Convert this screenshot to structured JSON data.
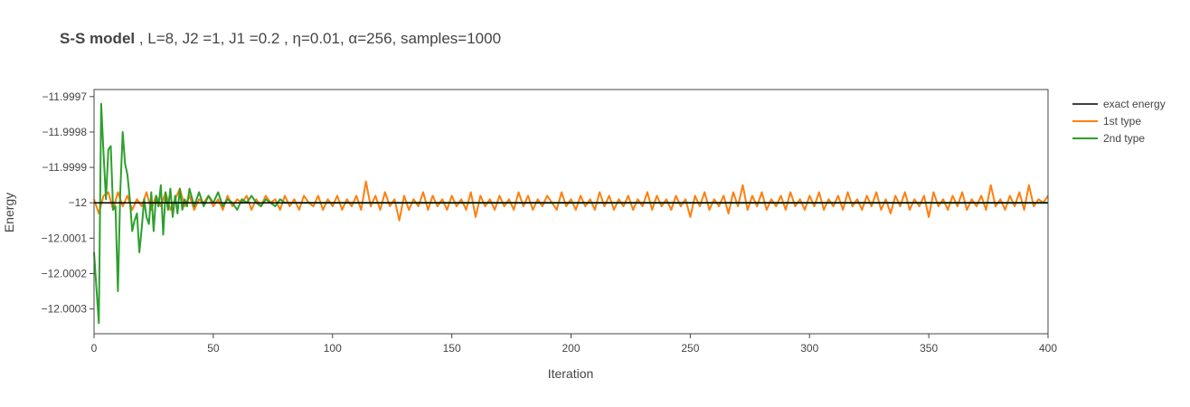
{
  "title": {
    "bold": "S-S model",
    "rest": " , L=8, J2 =1, J1 =0.2 , η=0.01, α=256, samples=1000"
  },
  "chart_data": {
    "type": "line",
    "xlabel": "Iteration",
    "ylabel": "Energy",
    "xlim": [
      0,
      400
    ],
    "ylim": [
      -12.00037,
      -11.99968
    ],
    "xticks": [
      0,
      50,
      100,
      150,
      200,
      250,
      300,
      350,
      400
    ],
    "yticks": [
      -11.9997,
      -11.9998,
      -11.9999,
      -12,
      -12.0001,
      -12.0002,
      -12.0003
    ],
    "ytick_labels": [
      "−11.9997",
      "−11.9998",
      "−11.9999",
      "−12",
      "−12.0001",
      "−12.0002",
      "−12.0003"
    ],
    "grid": false,
    "legend_position": "top-right (outside)",
    "series": [
      {
        "name": "exact energy",
        "color": "#000000",
        "x": [
          0,
          400
        ],
        "y": [
          -12.0,
          -12.0
        ]
      },
      {
        "name": "1st type",
        "color": "#ff7f0e",
        "x": [
          0,
          2,
          4,
          6,
          8,
          10,
          12,
          14,
          16,
          18,
          20,
          22,
          24,
          26,
          28,
          30,
          32,
          34,
          36,
          38,
          40,
          42,
          44,
          46,
          48,
          50,
          52,
          54,
          56,
          58,
          60,
          62,
          64,
          66,
          68,
          70,
          72,
          74,
          76,
          78,
          80,
          82,
          84,
          86,
          88,
          90,
          92,
          94,
          96,
          98,
          100,
          102,
          104,
          106,
          108,
          110,
          112,
          114,
          116,
          118,
          120,
          122,
          124,
          126,
          128,
          130,
          132,
          134,
          136,
          138,
          140,
          142,
          144,
          146,
          148,
          150,
          152,
          154,
          156,
          158,
          160,
          162,
          164,
          166,
          168,
          170,
          172,
          174,
          176,
          178,
          180,
          182,
          184,
          186,
          188,
          190,
          192,
          194,
          196,
          198,
          200,
          202,
          204,
          206,
          208,
          210,
          212,
          214,
          216,
          218,
          220,
          222,
          224,
          226,
          228,
          230,
          232,
          234,
          236,
          238,
          240,
          242,
          244,
          246,
          248,
          250,
          252,
          254,
          256,
          258,
          260,
          262,
          264,
          266,
          268,
          270,
          272,
          274,
          276,
          278,
          280,
          282,
          284,
          286,
          288,
          290,
          292,
          294,
          296,
          298,
          300,
          302,
          304,
          306,
          308,
          310,
          312,
          314,
          316,
          318,
          320,
          322,
          324,
          326,
          328,
          330,
          332,
          334,
          336,
          338,
          340,
          342,
          344,
          346,
          348,
          350,
          352,
          354,
          356,
          358,
          360,
          362,
          364,
          366,
          368,
          370,
          372,
          374,
          376,
          378,
          380,
          382,
          384,
          386,
          388,
          390,
          392,
          394,
          396,
          398,
          400
        ],
        "y": [
          -11.99999,
          -12.00003,
          -11.99998,
          -11.99997,
          -12.00002,
          -11.99997,
          -12.00001,
          -11.99998,
          -12.00002,
          -11.99999,
          -12.00001,
          -11.99997,
          -12.00002,
          -11.99998,
          -12.00001,
          -11.99997,
          -12.00002,
          -11.99999,
          -11.99996,
          -12.00001,
          -11.99998,
          -12.00002,
          -11.99999,
          -12.0,
          -11.99998,
          -12.00001,
          -11.99999,
          -12.00002,
          -11.99998,
          -12.00001,
          -11.99999,
          -12.0,
          -11.99998,
          -12.00002,
          -11.99999,
          -12.00001,
          -11.99998,
          -12.0,
          -11.99999,
          -12.00002,
          -11.99998,
          -12.00001,
          -11.99999,
          -12.00002,
          -11.99998,
          -12.0,
          -12.00001,
          -11.99998,
          -12.00002,
          -11.99999,
          -12.00001,
          -11.99998,
          -12.00002,
          -11.99999,
          -12.00001,
          -11.99998,
          -12.00002,
          -11.99994,
          -12.00001,
          -11.99998,
          -12.00002,
          -11.99997,
          -12.00001,
          -11.99999,
          -12.00005,
          -11.99998,
          -12.00002,
          -11.99999,
          -12.00001,
          -11.99997,
          -12.00002,
          -11.99998,
          -12.00001,
          -11.99999,
          -12.00002,
          -11.99998,
          -12.00001,
          -11.99999,
          -12.00002,
          -11.99997,
          -12.00004,
          -11.99998,
          -12.00001,
          -11.99999,
          -12.00002,
          -11.99998,
          -12.00001,
          -11.99999,
          -12.00002,
          -11.99997,
          -12.00001,
          -11.99998,
          -12.00002,
          -11.99999,
          -12.00001,
          -11.99998,
          -12.0,
          -12.00002,
          -11.99997,
          -12.00001,
          -11.99999,
          -12.00002,
          -11.99998,
          -12.00001,
          -11.99999,
          -12.00002,
          -11.99997,
          -12.00001,
          -11.99998,
          -12.00002,
          -11.99999,
          -12.00001,
          -11.99998,
          -12.00002,
          -11.99999,
          -12.00001,
          -11.99997,
          -12.00002,
          -11.99998,
          -12.00001,
          -11.99999,
          -12.00002,
          -11.99998,
          -12.00001,
          -11.99999,
          -12.00004,
          -11.99998,
          -12.00001,
          -11.99997,
          -12.00002,
          -11.99999,
          -12.00001,
          -11.99998,
          -12.00003,
          -11.99997,
          -12.00001,
          -11.99995,
          -12.00002,
          -11.99998,
          -12.00001,
          -11.99997,
          -12.00002,
          -11.99999,
          -12.00001,
          -11.99998,
          -12.00002,
          -11.99997,
          -12.00001,
          -11.99999,
          -12.00002,
          -11.99998,
          -12.00001,
          -11.99997,
          -12.00002,
          -11.99999,
          -12.00001,
          -11.99998,
          -12.00002,
          -11.99997,
          -12.00001,
          -11.99999,
          -12.00002,
          -11.99998,
          -12.00001,
          -11.99997,
          -12.00002,
          -11.99999,
          -12.00003,
          -11.99998,
          -12.00001,
          -11.99997,
          -12.00002,
          -11.99999,
          -12.00001,
          -11.99998,
          -12.00004,
          -11.99997,
          -12.00001,
          -11.99999,
          -12.00002,
          -11.99998,
          -12.00001,
          -11.99997,
          -12.00002,
          -11.99999,
          -12.00001,
          -11.99998,
          -12.00002,
          -11.99995,
          -12.00001,
          -11.99999,
          -12.00002,
          -11.99998,
          -12.00001,
          -11.99997,
          -12.00002,
          -11.99995,
          -12.00001,
          -11.99999,
          -12.0,
          -11.99998
        ]
      },
      {
        "name": "2nd type",
        "color": "#2ca02c",
        "x": [
          0,
          1,
          2,
          3,
          4,
          5,
          6,
          7,
          8,
          9,
          10,
          11,
          12,
          13,
          14,
          15,
          16,
          17,
          18,
          19,
          20,
          21,
          22,
          23,
          24,
          25,
          26,
          27,
          28,
          29,
          30,
          31,
          32,
          33,
          34,
          35,
          36,
          37,
          38,
          39,
          40,
          42,
          44,
          46,
          48,
          50,
          52,
          54,
          56,
          58,
          60,
          62,
          64,
          66,
          68,
          70,
          72,
          74,
          76,
          78,
          80,
          85,
          90,
          95,
          100,
          110,
          120,
          130,
          140,
          150,
          160,
          170,
          180,
          190,
          200,
          210,
          220,
          230,
          240,
          250,
          260,
          270,
          280,
          290,
          300,
          310,
          320,
          330,
          340,
          350,
          360,
          370,
          380,
          390,
          400
        ],
        "y": [
          -12.00014,
          -12.00024,
          -12.00034,
          -11.99972,
          -11.99986,
          -11.99999,
          -11.99985,
          -11.99984,
          -12.00002,
          -12.00001,
          -12.00025,
          -11.99997,
          -11.9998,
          -11.99989,
          -11.99992,
          -11.99999,
          -12.00008,
          -12.00005,
          -12.00003,
          -12.00014,
          -12.00007,
          -11.99999,
          -12.00004,
          -12.00006,
          -11.99997,
          -12.00008,
          -11.99998,
          -12.00001,
          -11.99995,
          -12.00009,
          -11.99997,
          -12.00002,
          -11.99996,
          -12.00004,
          -11.99998,
          -12.00003,
          -11.99996,
          -12.00002,
          -11.99999,
          -12.00001,
          -11.99996,
          -12.00001,
          -11.99997,
          -12.00001,
          -11.99998,
          -12.0,
          -11.99997,
          -12.00001,
          -11.99999,
          -12.0,
          -12.00002,
          -11.99999,
          -12.0,
          -11.99998,
          -12.0,
          -12.00001,
          -11.99999,
          -12.0,
          -12.00001,
          -11.99999,
          -12.0,
          -12.0,
          -12.0,
          -12.0,
          -12.0,
          -12.0,
          -12.0,
          -12.0,
          -12.0,
          -12.0,
          -12.0,
          -12.0,
          -12.0,
          -12.0,
          -12.0,
          -12.0,
          -12.0,
          -12.0,
          -12.0,
          -12.0,
          -12.0,
          -12.0,
          -12.0,
          -12.0,
          -12.0,
          -12.0,
          -12.0,
          -12.0,
          -12.0,
          -12.0,
          -12.0,
          -12.0,
          -12.0,
          -12.0,
          -12.0
        ]
      }
    ]
  }
}
